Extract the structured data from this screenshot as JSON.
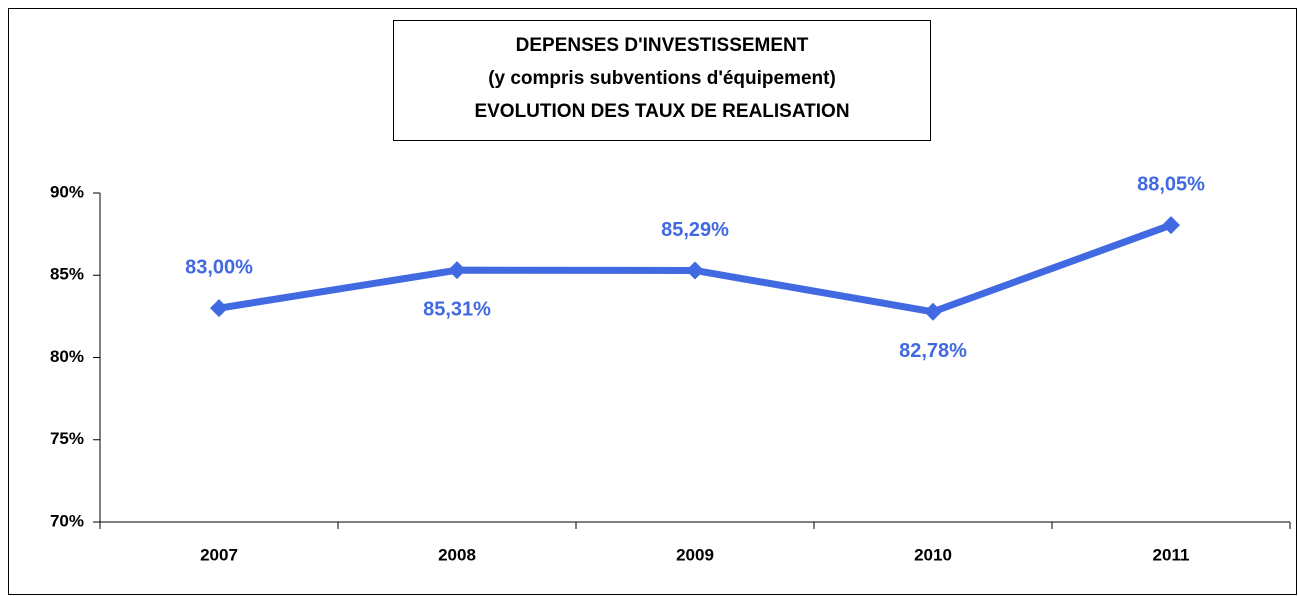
{
  "chart_data": {
    "type": "line",
    "title": [
      "DEPENSES D'INVESTISSEMENT",
      "(y compris subventions d'équipement)",
      "EVOLUTION DES TAUX DE REALISATION"
    ],
    "categories": [
      "2007",
      "2008",
      "2009",
      "2010",
      "2011"
    ],
    "values": [
      83.0,
      85.31,
      85.29,
      82.78,
      88.05
    ],
    "value_labels": [
      "83,00%",
      "85,31%",
      "85,29%",
      "82,78%",
      "88,05%"
    ],
    "color": "#4169e1",
    "ylim": [
      70,
      90
    ],
    "yticks": [
      {
        "value": 70,
        "label": "70%"
      },
      {
        "value": 75,
        "label": "75%"
      },
      {
        "value": 80,
        "label": "80%"
      },
      {
        "value": 85,
        "label": "85%"
      },
      {
        "value": 90,
        "label": "90%"
      }
    ],
    "grid": false
  }
}
